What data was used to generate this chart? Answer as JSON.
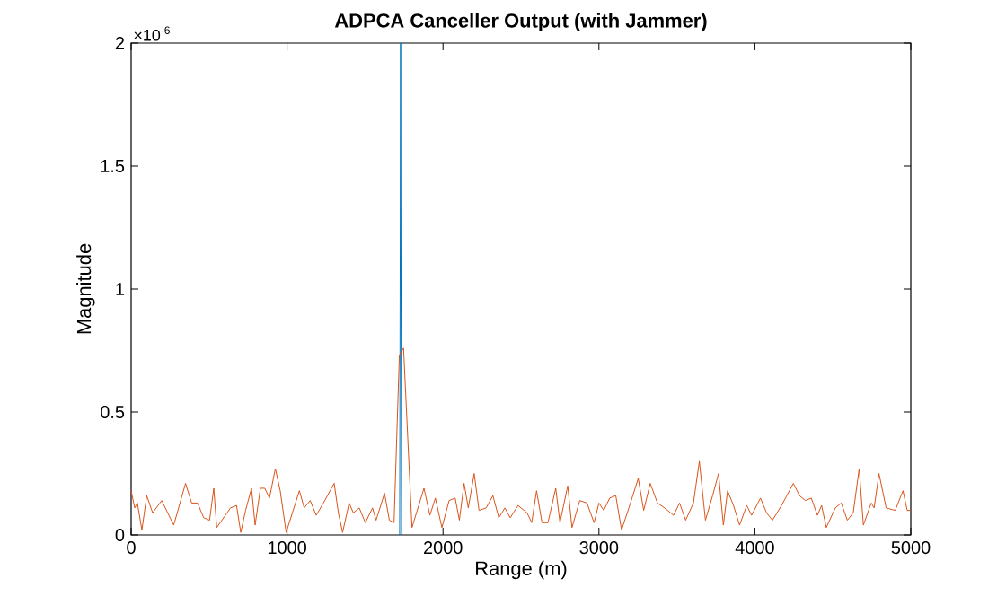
{
  "chart_data": {
    "type": "line",
    "title": "ADPCA Canceller Output (with Jammer)",
    "xlabel": "Range (m)",
    "ylabel": "Magnitude",
    "annotations": [
      "×10$^{-6}$"
    ],
    "xlim": [
      0,
      5000
    ],
    "ylim": [
      0,
      2
    ],
    "xticks": [
      0,
      1000,
      2000,
      3000,
      4000,
      5000
    ],
    "yticks": [
      0,
      0.5,
      1,
      1.5,
      2
    ],
    "series": [
      {
        "color": "#0072bd",
        "x": [
          1722,
          1728,
          1734
        ],
        "values": [
          0,
          2,
          0
        ]
      },
      {
        "color": "#d95319",
        "x": [
          0,
          23,
          40,
          69,
          100,
          138,
          196,
          273,
          349,
          388,
          426,
          465,
          503,
          530,
          549,
          637,
          676,
          703,
          734,
          772,
          795,
          829,
          857,
          887,
          925,
          956,
          994,
          1079,
          1110,
          1148,
          1187,
          1233,
          1302,
          1329,
          1356,
          1398,
          1425,
          1463,
          1502,
          1548,
          1571,
          1625,
          1656,
          1686,
          1720,
          1747,
          1801,
          1878,
          1916,
          1951,
          1993,
          2039,
          2078,
          2105,
          2135,
          2162,
          2200,
          2231,
          2277,
          2320,
          2358,
          2397,
          2431,
          2481,
          2539,
          2569,
          2600,
          2635,
          2673,
          2723,
          2750,
          2800,
          2827,
          2877,
          2923,
          2969,
          3000,
          3031,
          3069,
          3108,
          3145,
          3192,
          3252,
          3287,
          3329,
          3375,
          3421,
          3479,
          3517,
          3556,
          3606,
          3644,
          3683,
          3729,
          3767,
          3798,
          3825,
          3863,
          3902,
          3948,
          3979,
          4036,
          4075,
          4113,
          4171,
          4247,
          4286,
          4324,
          4362,
          4401,
          4428,
          4458,
          4516,
          4554,
          4593,
          4631,
          4669,
          4696,
          4746,
          4765,
          4796,
          4842,
          4900,
          4950,
          4977,
          5000
        ],
        "values": [
          0.18,
          0.11,
          0.13,
          0.02,
          0.16,
          0.09,
          0.14,
          0.04,
          0.21,
          0.13,
          0.13,
          0.07,
          0.06,
          0.19,
          0.03,
          0.11,
          0.12,
          0.01,
          0.1,
          0.19,
          0.04,
          0.19,
          0.19,
          0.15,
          0.27,
          0.18,
          0.01,
          0.18,
          0.11,
          0.14,
          0.08,
          0.13,
          0.21,
          0.09,
          0.01,
          0.13,
          0.09,
          0.11,
          0.05,
          0.11,
          0.06,
          0.17,
          0.06,
          0.05,
          0.73,
          0.76,
          0.03,
          0.19,
          0.08,
          0.15,
          0.03,
          0.14,
          0.15,
          0.06,
          0.21,
          0.11,
          0.25,
          0.1,
          0.11,
          0.16,
          0.07,
          0.11,
          0.07,
          0.12,
          0.09,
          0.05,
          0.18,
          0.05,
          0.05,
          0.19,
          0.05,
          0.2,
          0.03,
          0.14,
          0.13,
          0.05,
          0.13,
          0.1,
          0.15,
          0.16,
          0.02,
          0.11,
          0.23,
          0.1,
          0.21,
          0.13,
          0.11,
          0.08,
          0.13,
          0.06,
          0.13,
          0.3,
          0.06,
          0.16,
          0.25,
          0.04,
          0.18,
          0.12,
          0.04,
          0.12,
          0.08,
          0.15,
          0.09,
          0.06,
          0.12,
          0.21,
          0.16,
          0.14,
          0.15,
          0.08,
          0.12,
          0.03,
          0.11,
          0.13,
          0.06,
          0.09,
          0.27,
          0.04,
          0.13,
          0.11,
          0.25,
          0.11,
          0.1,
          0.18,
          0.1,
          0.1
        ]
      }
    ]
  }
}
